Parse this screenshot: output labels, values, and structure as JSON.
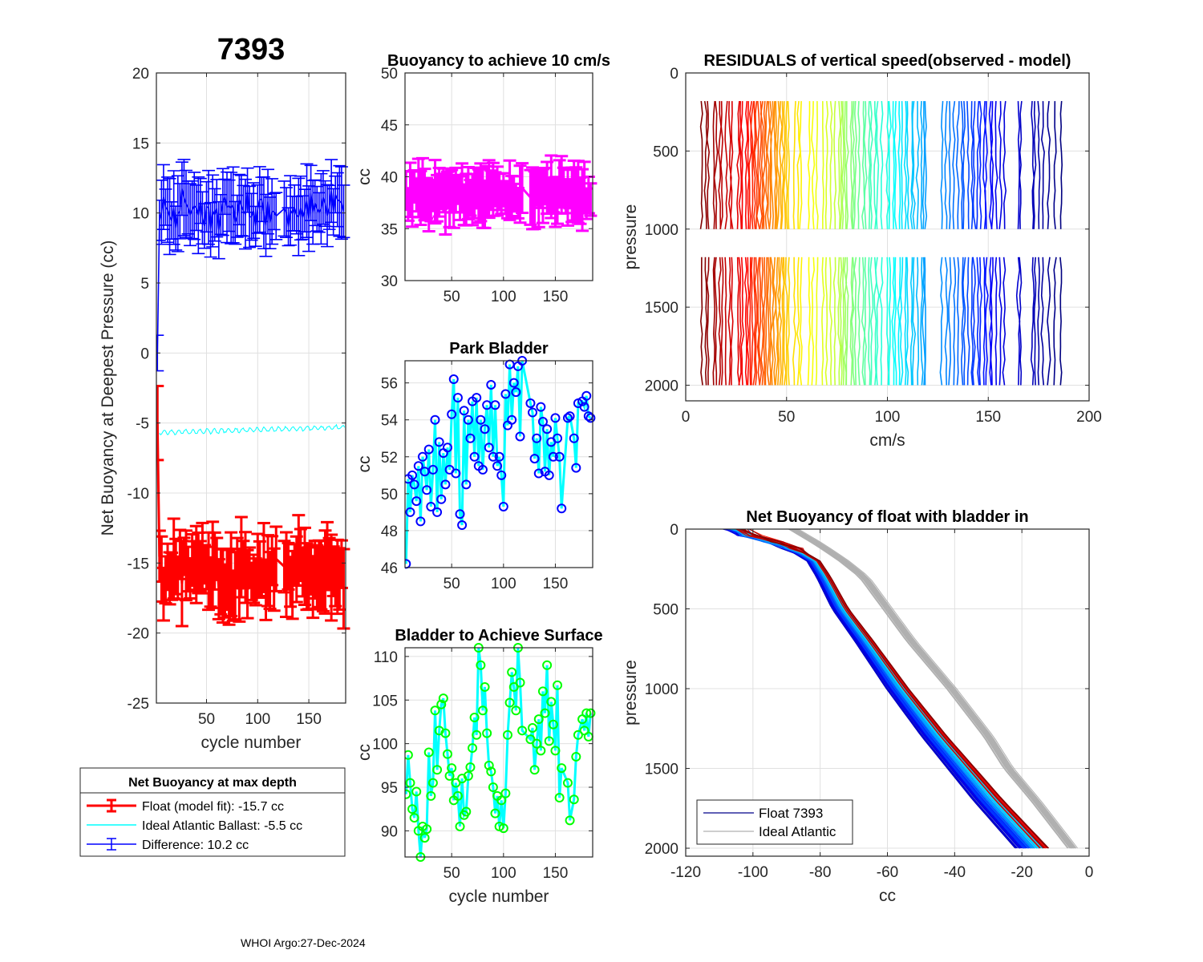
{
  "figure": {
    "float_id": "7393",
    "footer": "WHOI Argo:27-Dec-2024"
  },
  "chart_data": [
    {
      "id": "net-buoyancy",
      "type": "errorbar-line",
      "title": "7393",
      "xlabel": "cycle number",
      "ylabel": "Net Buoyancy at Deepest Pressure (cc)",
      "xlim": [
        1,
        186
      ],
      "ylim": [
        -25,
        20
      ],
      "xticks": [
        50,
        100,
        150
      ],
      "yticks": [
        20,
        15,
        10,
        5,
        0,
        -5,
        -10,
        -15,
        -20,
        -25
      ],
      "grid": true,
      "legend": {
        "title": "Net Buoyancy at max depth",
        "placement": "below",
        "entries": [
          {
            "label": "Float (model fit): -15.7 cc",
            "color": "#ff0000",
            "style": "errorbar-thick"
          },
          {
            "label": "Ideal Atlantic Ballast:  -5.5 cc",
            "color": "#00ffff",
            "style": "line"
          },
          {
            "label": "Difference:  10.2 cc",
            "color": "#0000ff",
            "style": "errorbar"
          }
        ]
      },
      "series": [
        {
          "name": "Float (model fit)",
          "color": "#ff0000",
          "mean": -15.7,
          "spread": 2.2,
          "err": 2.2,
          "start": -5
        },
        {
          "name": "Ideal Atlantic Ballast",
          "color": "#00ffff",
          "mean": -5.5,
          "spread": 0.25
        },
        {
          "name": "Difference",
          "color": "#0000ff",
          "mean": 10.2,
          "spread": 2.0,
          "err": 2.0,
          "start": 0
        }
      ]
    },
    {
      "id": "buoyancy-10cms",
      "type": "errorbar-line",
      "title": "Buoyancy to achieve 10 cm/s",
      "xlabel": "",
      "ylabel": "cc",
      "xlim": [
        5,
        186
      ],
      "ylim": [
        30,
        50
      ],
      "xticks": [
        50,
        100,
        150
      ],
      "yticks": [
        50,
        45,
        40,
        35,
        30
      ],
      "grid": true,
      "series": [
        {
          "name": "buoyancy",
          "color": "#ff00ff",
          "mean": 38.3,
          "spread": 1.6,
          "err": 2.2
        }
      ]
    },
    {
      "id": "park-bladder",
      "type": "line-markers",
      "title": "Park Bladder",
      "xlabel": "",
      "ylabel": "cc",
      "xlim": [
        5,
        186
      ],
      "ylim": [
        46,
        57.2
      ],
      "xticks": [
        50,
        100,
        150
      ],
      "yticks": [
        56,
        54,
        52,
        50,
        48,
        46
      ],
      "grid": true,
      "series": [
        {
          "name": "park bladder",
          "line_color": "#00ffff",
          "marker_color": "#0000ff",
          "x": [
            6,
            8,
            10,
            12,
            14,
            16,
            18,
            20,
            22,
            24,
            26,
            28,
            30,
            32,
            34,
            36,
            38,
            40,
            42,
            44,
            46,
            48,
            50,
            52,
            54,
            56,
            58,
            60,
            62,
            64,
            66,
            68,
            70,
            72,
            74,
            76,
            78,
            80,
            82,
            84,
            86,
            88,
            90,
            92,
            94,
            96,
            98,
            100,
            102,
            104,
            106,
            108,
            110,
            112,
            114,
            116,
            118,
            126,
            128,
            130,
            132,
            134,
            136,
            138,
            140,
            142,
            144,
            146,
            148,
            150,
            152,
            154,
            156,
            162,
            164,
            168,
            170,
            172,
            176,
            178,
            180,
            182,
            184
          ],
          "y": [
            46.2,
            50.8,
            49.0,
            51.0,
            50.5,
            49.6,
            51.5,
            48.5,
            52.0,
            51.2,
            50.2,
            52.4,
            49.3,
            51.3,
            54.0,
            49.0,
            52.8,
            49.7,
            52.2,
            50.5,
            52.5,
            51.3,
            54.3,
            56.2,
            51.1,
            55.2,
            48.9,
            48.3,
            54.5,
            50.5,
            54.0,
            53.0,
            55.0,
            52.0,
            55.2,
            51.5,
            54.0,
            51.3,
            53.5,
            54.8,
            52.5,
            55.9,
            52.0,
            54.8,
            51.5,
            52.0,
            51.0,
            49.3,
            55.4,
            53.7,
            57.0,
            54.0,
            56.0,
            55.5,
            56.9,
            53.1,
            57.2,
            54.9,
            54.4,
            51.9,
            53.0,
            51.1,
            54.7,
            53.9,
            51.2,
            53.5,
            51.0,
            52.8,
            52.0,
            54.1,
            53.0,
            52.0,
            49.2,
            54.1,
            54.2,
            53.0,
            51.4,
            54.9,
            55.0,
            54.7,
            55.3,
            54.2,
            54.1
          ]
        }
      ]
    },
    {
      "id": "bladder-surface",
      "type": "line-markers",
      "title": "Bladder to Achieve Surface",
      "xlabel": "cycle number",
      "ylabel": "cc",
      "xlim": [
        5,
        186
      ],
      "ylim": [
        87,
        111
      ],
      "xticks": [
        50,
        100,
        150
      ],
      "yticks": [
        110,
        105,
        100,
        95,
        90
      ],
      "grid": true,
      "series": [
        {
          "name": "bladder to surface",
          "line_color": "#00ffff",
          "marker_color": "#00ff00",
          "x": [
            6,
            8,
            10,
            12,
            14,
            16,
            18,
            20,
            22,
            24,
            26,
            28,
            30,
            32,
            34,
            36,
            38,
            40,
            42,
            44,
            46,
            48,
            50,
            52,
            54,
            56,
            58,
            60,
            62,
            64,
            66,
            68,
            70,
            72,
            74,
            76,
            78,
            80,
            82,
            84,
            86,
            88,
            90,
            92,
            94,
            96,
            98,
            100,
            102,
            104,
            106,
            108,
            110,
            112,
            114,
            116,
            118,
            126,
            128,
            130,
            132,
            134,
            136,
            138,
            140,
            142,
            144,
            146,
            148,
            150,
            152,
            154,
            156,
            162,
            164,
            168,
            170,
            172,
            176,
            178,
            180,
            182,
            184
          ],
          "y": [
            94.2,
            98.7,
            95.5,
            92.5,
            91.5,
            94.5,
            90.0,
            87.0,
            90.5,
            89.2,
            90.2,
            99.0,
            94.0,
            95.5,
            103.8,
            97.0,
            101.5,
            104.5,
            105.2,
            101.2,
            98.8,
            96.3,
            97.2,
            93.5,
            95.5,
            94.0,
            90.5,
            96.0,
            91.8,
            92.2,
            96.3,
            97.3,
            99.5,
            103.0,
            101.0,
            111.0,
            109.0,
            103.8,
            106.5,
            101.2,
            97.5,
            96.8,
            95.0,
            92.0,
            94.0,
            90.5,
            93.5,
            90.3,
            94.3,
            101.0,
            104.7,
            108.2,
            106.5,
            103.8,
            111.0,
            107.0,
            101.5,
            100.5,
            101.8,
            97.0,
            100.0,
            102.8,
            99.2,
            106.0,
            103.5,
            109.0,
            100.3,
            104.8,
            102.2,
            99.2,
            106.7,
            93.8,
            97.2,
            95.5,
            91.2,
            93.6,
            98.5,
            101.0,
            102.8,
            101.5,
            103.5,
            100.8,
            103.5
          ]
        }
      ]
    },
    {
      "id": "residuals",
      "type": "line",
      "title": "RESIDUALS of vertical speed(observed - model)",
      "xlabel": "cm/s",
      "ylabel": "pressure",
      "xlim": [
        0,
        200
      ],
      "ylim": [
        0,
        2100
      ],
      "y_reversed": true,
      "xticks": [
        0,
        50,
        100,
        150,
        200
      ],
      "yticks": [
        0,
        500,
        1000,
        1500,
        2000
      ],
      "grid": true,
      "colormap": "jet-reversed",
      "segments": [
        {
          "p_top": 180,
          "p_bottom": 1000
        },
        {
          "p_top": 1180,
          "p_bottom": 2000
        }
      ],
      "profile_offsets_cms": [
        8,
        10,
        11,
        14,
        15,
        17,
        18,
        20,
        22,
        23,
        26,
        27,
        28,
        30,
        31,
        32,
        33,
        34,
        35,
        36,
        37,
        38,
        39,
        40,
        41,
        42,
        43,
        44,
        45,
        46,
        47,
        48,
        49,
        50,
        51,
        54,
        56,
        57,
        61,
        63,
        65,
        68,
        70,
        72,
        74,
        76,
        77,
        78,
        79,
        80,
        82,
        83,
        84,
        86,
        88,
        89,
        91,
        92,
        94,
        95,
        97,
        100,
        101,
        103,
        104,
        106,
        107,
        109,
        110,
        112,
        113,
        115,
        117,
        118,
        119,
        127,
        129,
        131,
        133,
        135,
        137,
        138,
        140,
        142,
        143,
        145,
        146,
        148,
        149,
        151,
        152,
        154,
        156,
        158,
        165,
        166,
        172,
        173,
        175,
        177,
        180,
        183,
        186
      ]
    },
    {
      "id": "net-buoyancy-bladder-in",
      "type": "line",
      "title": "Net Buoyancy of float with bladder in",
      "xlabel": "cc",
      "ylabel": "pressure",
      "xlim": [
        -120,
        0
      ],
      "ylim": [
        0,
        2050
      ],
      "y_reversed": true,
      "xticks": [
        -120,
        -100,
        -80,
        -60,
        -40,
        -20,
        0
      ],
      "yticks": [
        0,
        500,
        1000,
        1500,
        2000
      ],
      "grid": true,
      "legend": {
        "placement": "bottom-left",
        "entries": [
          {
            "label": "Float 7393",
            "color": "#00008b"
          },
          {
            "label": "Ideal Atlantic",
            "color": "#b0b0b0"
          }
        ]
      },
      "float_profile": {
        "pressure": [
          0,
          50,
          100,
          200,
          300,
          500,
          700,
          1000,
          1300,
          1500,
          1700,
          2000
        ],
        "cc": [
          -105,
          -100,
          -90,
          -82,
          -79,
          -74,
          -67,
          -57,
          -46,
          -38,
          -30,
          -17
        ]
      },
      "ideal_profile": {
        "pressure": [
          0,
          50,
          100,
          200,
          300,
          500,
          700,
          1000,
          1300,
          1500,
          1700,
          2000
        ],
        "cc": [
          -88,
          -84,
          -80,
          -73,
          -67,
          -60,
          -53,
          -41,
          -30,
          -24,
          -16,
          -5
        ]
      },
      "float_spread_cc": 7,
      "ideal_spread_cc": 2
    }
  ]
}
